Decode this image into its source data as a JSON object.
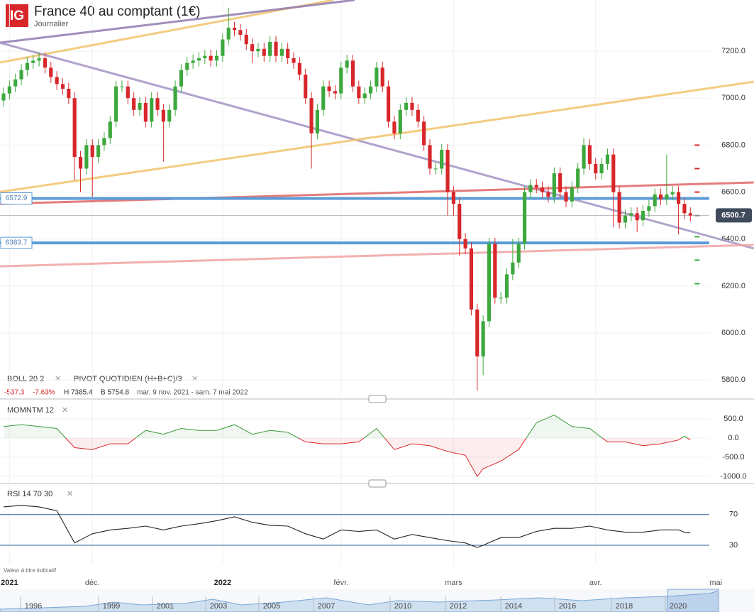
{
  "header": {
    "logo": "IG",
    "title": "France 40 au comptant (1€)",
    "subtitle": "Journalier"
  },
  "indicator_labels": {
    "boll": "BOLL  20  2",
    "pivot": "PIVOT  QUOTIDIEN  (H+B+C)/3",
    "momentum": "MOMNTM  12",
    "rsi": "RSI  14  70  30"
  },
  "stats": {
    "change": "-537.3",
    "change_pct": "-7.63%",
    "high": "H 7385.4",
    "low": "B 5754.8",
    "period": "mar. 9 nov. 2021 - sam. 7 mai 2022"
  },
  "note": "Valeur à titre indicatif",
  "navigator": {
    "labels": [
      "1996",
      "1999",
      "2001",
      "2003",
      "2005",
      "2007",
      "2010",
      "2012",
      "2014",
      "2016",
      "2018",
      "2020"
    ]
  },
  "chart_data": [
    {
      "type": "candlestick",
      "up_color": "#3da83d",
      "down_color": "#d8272b",
      "xlim": [
        -0.6,
        119.2
      ],
      "xticks": [
        {
          "value": 1,
          "label": "2021"
        },
        {
          "value": 15,
          "label": "déc."
        },
        {
          "value": 37,
          "label": "2022"
        },
        {
          "value": 57,
          "label": "févr."
        },
        {
          "value": 76,
          "label": "mars"
        },
        {
          "value": 100,
          "label": "avr."
        },
        {
          "value": 120.3,
          "label": "mai"
        }
      ],
      "ylim": [
        5740,
        7418
      ],
      "yticks": [
        {
          "value": 5800,
          "label": "5800.0"
        },
        {
          "value": 6000,
          "label": "6000.0"
        },
        {
          "value": 6200,
          "label": "6200.0"
        },
        {
          "value": 6400,
          "label": "6400.0"
        },
        {
          "value": 6600,
          "label": "6600.0"
        },
        {
          "value": 6800,
          "label": "6800.0"
        },
        {
          "value": 7000,
          "label": "7000.0"
        },
        {
          "value": 7200,
          "label": "7200.0"
        }
      ],
      "open": [
        6990,
        7020,
        7050,
        7080,
        7120,
        7150,
        7160,
        7170,
        7130,
        7090,
        7060,
        7040,
        7000,
        6750,
        6700,
        6800,
        6750,
        6800,
        6830,
        6900,
        7050,
        7050,
        7000,
        6950,
        6980,
        6900,
        7000,
        6950,
        6900,
        6950,
        7050,
        7120,
        7150,
        7160,
        7170,
        7180,
        7160,
        7180,
        7250,
        7300,
        7290,
        7270,
        7230,
        7200,
        7210,
        7180,
        7240,
        7180,
        7210,
        7170,
        7150,
        7100,
        7000,
        6850,
        6950,
        7050,
        7030,
        7020,
        7130,
        7160,
        7050,
        7000,
        7020,
        7050,
        7130,
        7050,
        6900,
        6850,
        6950,
        6980,
        6950,
        6900,
        6800,
        6700,
        6700,
        6780,
        6600,
        6550,
        6400,
        6360,
        6100,
        5900,
        6050,
        6380,
        6150,
        6150,
        6250,
        6300,
        6380,
        6600,
        6630,
        6620,
        6600,
        6580,
        6680,
        6600,
        6560,
        6620,
        6700,
        6800,
        6720,
        6680,
        6720,
        6760,
        6600,
        6470,
        6500,
        6510,
        6480,
        6520,
        6540,
        6590,
        6570,
        6590,
        6600,
        6550,
        6510
      ],
      "high": [
        7045,
        7075,
        7105,
        7145,
        7175,
        7185,
        7195,
        7195,
        7155,
        7115,
        7085,
        7065,
        7025,
        6775,
        6825,
        6825,
        6825,
        6855,
        6925,
        7075,
        7075,
        7075,
        7025,
        7005,
        7005,
        7025,
        7025,
        6975,
        6975,
        7075,
        7145,
        7175,
        7185,
        7195,
        7205,
        7205,
        7205,
        7275,
        7385,
        7325,
        7315,
        7295,
        7255,
        7235,
        7235,
        7265,
        7265,
        7235,
        7235,
        7195,
        7175,
        7125,
        7025,
        6975,
        7075,
        7075,
        7055,
        7155,
        7185,
        7185,
        7075,
        7045,
        7075,
        7155,
        7155,
        7075,
        6925,
        6975,
        7005,
        7005,
        6975,
        6925,
        6825,
        6725,
        6805,
        6805,
        6625,
        6575,
        6425,
        6385,
        6125,
        6075,
        6405,
        6405,
        6175,
        6275,
        6400,
        6405,
        6625,
        6655,
        6655,
        6645,
        6625,
        6705,
        6705,
        6625,
        6645,
        6725,
        6830,
        6825,
        6745,
        6745,
        6785,
        6785,
        6625,
        6525,
        6535,
        6535,
        6545,
        6565,
        6615,
        6615,
        6760,
        6625,
        6625,
        6575,
        6535
      ],
      "low": [
        6965,
        6995,
        7025,
        7055,
        7095,
        7125,
        7135,
        7105,
        7065,
        7035,
        7015,
        6975,
        6650,
        6600,
        6675,
        6580,
        6725,
        6775,
        6805,
        6875,
        7025,
        6975,
        6925,
        6925,
        6875,
        6875,
        6925,
        6730,
        6875,
        6925,
        7025,
        7095,
        7125,
        7135,
        7145,
        7135,
        7135,
        7155,
        7225,
        7265,
        7245,
        7205,
        7150,
        7175,
        7155,
        7155,
        7155,
        7155,
        7145,
        7125,
        7075,
        6975,
        6700,
        6825,
        6925,
        7005,
        6995,
        6995,
        7105,
        7025,
        6975,
        6975,
        6995,
        7025,
        7025,
        6875,
        6825,
        6825,
        6925,
        6925,
        6875,
        6775,
        6675,
        6675,
        6675,
        6500,
        6500,
        6330,
        6335,
        6075,
        5755,
        5820,
        6025,
        6125,
        6125,
        6125,
        6225,
        6275,
        6355,
        6575,
        6595,
        6575,
        6555,
        6555,
        6575,
        6535,
        6535,
        6595,
        6675,
        6695,
        6655,
        6655,
        6695,
        6450,
        6445,
        6445,
        6475,
        6430,
        6455,
        6495,
        6515,
        6545,
        6545,
        6565,
        6420,
        6485,
        6475
      ],
      "close": [
        7020,
        7050,
        7080,
        7120,
        7150,
        7160,
        7170,
        7130,
        7090,
        7060,
        7040,
        7000,
        6750,
        6700,
        6800,
        6750,
        6800,
        6830,
        6900,
        7050,
        7050,
        7000,
        6950,
        6980,
        6900,
        7000,
        6950,
        6900,
        6950,
        7050,
        7120,
        7150,
        7160,
        7170,
        7180,
        7160,
        7180,
        7250,
        7300,
        7290,
        7270,
        7230,
        7200,
        7210,
        7180,
        7240,
        7180,
        7210,
        7170,
        7150,
        7100,
        7000,
        6850,
        6950,
        7050,
        7030,
        7020,
        7130,
        7160,
        7050,
        7000,
        7020,
        7050,
        7130,
        7050,
        6900,
        6850,
        6950,
        6980,
        6950,
        6900,
        6800,
        6700,
        6700,
        6780,
        6600,
        6550,
        6400,
        6360,
        6100,
        5900,
        6050,
        6380,
        6150,
        6150,
        6250,
        6300,
        6380,
        6600,
        6630,
        6620,
        6600,
        6580,
        6680,
        6600,
        6560,
        6620,
        6700,
        6800,
        6720,
        6680,
        6720,
        6760,
        6600,
        6470,
        6500,
        6510,
        6480,
        6520,
        6540,
        6590,
        6570,
        6590,
        6600,
        6550,
        6510,
        6500
      ],
      "levels": [
        {
          "value": 6572.9,
          "color": "#5b9bd5"
        },
        {
          "value": 6383.7,
          "color": "#5b9bd5"
        }
      ],
      "last": {
        "value": 6500.7,
        "color": "#3f4a5c"
      },
      "trend_lines": [
        {
          "points": [
            [
              -0.6,
              7152
            ],
            [
              55.7,
              7418
            ]
          ],
          "color": "#f2c46d"
        },
        {
          "points": [
            [
              -0.6,
              7236
            ],
            [
              59.3,
              7418
            ]
          ],
          "color": "#8f7bb0"
        },
        {
          "points": [
            [
              -0.6,
              7236
            ],
            [
              126.7,
              6360
            ]
          ],
          "color": "#a494c4"
        },
        {
          "points": [
            [
              -0.6,
              6601
            ],
            [
              126.7,
              7070
            ]
          ],
          "color": "#f2c46d"
        },
        {
          "points": [
            [
              -0.6,
              6550
            ],
            [
              126.7,
              6641
            ]
          ],
          "color": "#e06666"
        },
        {
          "points": [
            [
              -0.6,
              6284
            ],
            [
              126.7,
              6375
            ]
          ],
          "color": "#f0a3a3"
        }
      ],
      "pivots": {
        "index": 116,
        "values": [
          6800,
          6700,
          6600,
          6500,
          6410,
          6310,
          6210
        ],
        "colors": [
          "#d8272b",
          "#d8272b",
          "#d8272b",
          "#888888",
          "#3da83d",
          "#3da83d",
          "#3da83d"
        ]
      }
    },
    {
      "type": "line",
      "colors": {
        "positive": "#3a9a3a",
        "negative": "#d8272b"
      },
      "x": [
        0,
        3,
        6,
        9,
        12,
        15,
        18,
        21,
        24,
        27,
        30,
        33,
        36,
        39,
        42,
        45,
        48,
        51,
        54,
        57,
        60,
        63,
        66,
        69,
        72,
        75,
        78,
        80,
        81,
        84,
        87,
        90,
        93,
        96,
        99,
        102,
        105,
        108,
        111,
        114,
        115,
        116
      ],
      "values": [
        300,
        350,
        300,
        250,
        -250,
        -300,
        -150,
        -150,
        200,
        100,
        250,
        200,
        200,
        350,
        100,
        200,
        150,
        -100,
        -150,
        -150,
        -100,
        250,
        -300,
        -150,
        -200,
        -350,
        -450,
        -1000,
        -800,
        -600,
        -300,
        400,
        600,
        300,
        250,
        -100,
        -100,
        -200,
        -150,
        -50,
        50,
        -50
      ],
      "ylim": [
        -1167,
        963
      ],
      "yticks": [
        {
          "value": 500,
          "label": "500.0"
        },
        {
          "value": 0,
          "label": "0.0"
        },
        {
          "value": -500,
          "label": "-500.0"
        },
        {
          "value": -1000,
          "label": "-1000.0"
        }
      ]
    },
    {
      "type": "line",
      "color": "#222222",
      "band_color": "#2e5e8c",
      "x": [
        0,
        3,
        6,
        9,
        12,
        15,
        18,
        21,
        24,
        27,
        30,
        33,
        36,
        39,
        42,
        45,
        48,
        51,
        54,
        57,
        60,
        63,
        66,
        69,
        72,
        75,
        78,
        80,
        81,
        84,
        87,
        90,
        93,
        96,
        99,
        102,
        105,
        108,
        111,
        114,
        115,
        116
      ],
      "values": [
        80,
        82,
        80,
        75,
        33,
        45,
        50,
        52,
        55,
        50,
        55,
        58,
        62,
        67,
        60,
        56,
        55,
        45,
        38,
        50,
        48,
        50,
        38,
        44,
        40,
        36,
        33,
        27,
        30,
        40,
        40,
        48,
        52,
        52,
        55,
        50,
        47,
        47,
        50,
        50,
        47,
        46
      ],
      "ylim": [
        5,
        104
      ],
      "yticks": [
        70,
        30
      ]
    }
  ]
}
